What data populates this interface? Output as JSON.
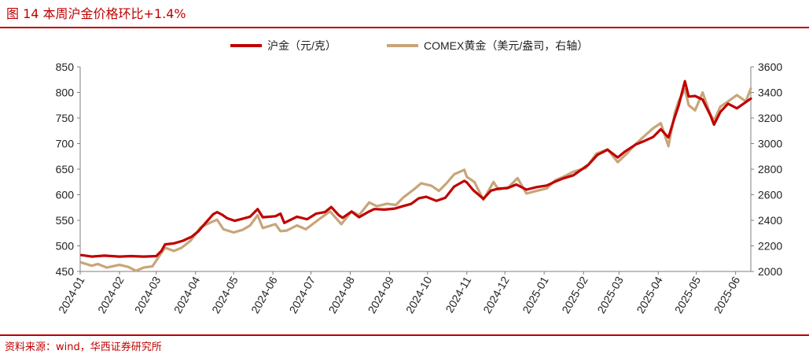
{
  "figure": {
    "title": "图 14   本周沪金价格环比+1.4%",
    "source": "资料来源：wind，华西证券研究所"
  },
  "colors": {
    "shfe": "#c00000",
    "comex": "#c8a57a",
    "accent": "#c00000"
  },
  "chart_data": {
    "type": "line",
    "title": "",
    "xlabel": "",
    "ylabel": "",
    "y_left": {
      "min": 450,
      "max": 850,
      "ticks": [
        "450",
        "500",
        "550",
        "600",
        "650",
        "700",
        "750",
        "800",
        "850"
      ]
    },
    "y_right": {
      "min": 2000,
      "max": 3600,
      "ticks": [
        "2000",
        "2200",
        "2400",
        "2600",
        "2800",
        "3000",
        "3200",
        "3400",
        "3600"
      ]
    },
    "x_range": [
      "2024-01-01",
      "2025-06-13"
    ],
    "x_ticks": [
      "2024-01",
      "2024-02",
      "2024-03",
      "2024-04",
      "2024-05",
      "2024-06",
      "2024-07",
      "2024-08",
      "2024-09",
      "2024-10",
      "2024-11",
      "2024-12",
      "2025-01",
      "2025-02",
      "2025-03",
      "2025-04",
      "2025-05",
      "2025-06"
    ],
    "legend_position": "top-center",
    "grid": false,
    "series": [
      {
        "name": "沪金（元/克）",
        "axis": "left",
        "points": [
          [
            "2024-01-02",
            482
          ],
          [
            "2024-01-10",
            479
          ],
          [
            "2024-01-20",
            481
          ],
          [
            "2024-02-01",
            479
          ],
          [
            "2024-02-10",
            480
          ],
          [
            "2024-02-20",
            479
          ],
          [
            "2024-03-01",
            480
          ],
          [
            "2024-03-05",
            490
          ],
          [
            "2024-03-08",
            503
          ],
          [
            "2024-03-15",
            505
          ],
          [
            "2024-03-22",
            510
          ],
          [
            "2024-03-29",
            518
          ],
          [
            "2024-04-03",
            528
          ],
          [
            "2024-04-10",
            548
          ],
          [
            "2024-04-15",
            562
          ],
          [
            "2024-04-18",
            566
          ],
          [
            "2024-04-22",
            561
          ],
          [
            "2024-04-26",
            554
          ],
          [
            "2024-05-02",
            549
          ],
          [
            "2024-05-08",
            553
          ],
          [
            "2024-05-14",
            557
          ],
          [
            "2024-05-20",
            572
          ],
          [
            "2024-05-24",
            556
          ],
          [
            "2024-06-03",
            558
          ],
          [
            "2024-06-07",
            563
          ],
          [
            "2024-06-10",
            545
          ],
          [
            "2024-06-20",
            557
          ],
          [
            "2024-06-28",
            552
          ],
          [
            "2024-07-05",
            563
          ],
          [
            "2024-07-12",
            566
          ],
          [
            "2024-07-17",
            576
          ],
          [
            "2024-07-23",
            560
          ],
          [
            "2024-07-26",
            555
          ],
          [
            "2024-08-02",
            567
          ],
          [
            "2024-08-08",
            556
          ],
          [
            "2024-08-15",
            566
          ],
          [
            "2024-08-20",
            572
          ],
          [
            "2024-08-28",
            571
          ],
          [
            "2024-09-05",
            573
          ],
          [
            "2024-09-12",
            578
          ],
          [
            "2024-09-18",
            582
          ],
          [
            "2024-09-24",
            593
          ],
          [
            "2024-09-30",
            596
          ],
          [
            "2024-10-08",
            588
          ],
          [
            "2024-10-15",
            594
          ],
          [
            "2024-10-22",
            616
          ],
          [
            "2024-10-30",
            627
          ],
          [
            "2024-11-01",
            624
          ],
          [
            "2024-11-06",
            609
          ],
          [
            "2024-11-14",
            592
          ],
          [
            "2024-11-20",
            608
          ],
          [
            "2024-11-26",
            612
          ],
          [
            "2024-12-03",
            613
          ],
          [
            "2024-12-10",
            620
          ],
          [
            "2024-12-18",
            610
          ],
          [
            "2024-12-26",
            615
          ],
          [
            "2025-01-03",
            618
          ],
          [
            "2025-01-10",
            626
          ],
          [
            "2025-01-16",
            632
          ],
          [
            "2025-01-24",
            638
          ],
          [
            "2025-02-05",
            659
          ],
          [
            "2025-02-12",
            678
          ],
          [
            "2025-02-20",
            688
          ],
          [
            "2025-02-28",
            673
          ],
          [
            "2025-03-06",
            685
          ],
          [
            "2025-03-14",
            698
          ],
          [
            "2025-03-20",
            704
          ],
          [
            "2025-03-28",
            713
          ],
          [
            "2025-04-03",
            728
          ],
          [
            "2025-04-09",
            712
          ],
          [
            "2025-04-14",
            752
          ],
          [
            "2025-04-17",
            774
          ],
          [
            "2025-04-22",
            822
          ],
          [
            "2025-04-25",
            792
          ],
          [
            "2025-04-30",
            793
          ],
          [
            "2025-05-06",
            786
          ],
          [
            "2025-05-12",
            756
          ],
          [
            "2025-05-15",
            737
          ],
          [
            "2025-05-20",
            762
          ],
          [
            "2025-05-26",
            778
          ],
          [
            "2025-06-02",
            769
          ],
          [
            "2025-06-09",
            781
          ],
          [
            "2025-06-13",
            788
          ]
        ]
      },
      {
        "name": "COMEX黄金（美元/盎司，右轴）",
        "axis": "right",
        "points": [
          [
            "2024-01-02",
            2070
          ],
          [
            "2024-01-10",
            2045
          ],
          [
            "2024-01-15",
            2058
          ],
          [
            "2024-01-22",
            2030
          ],
          [
            "2024-02-01",
            2052
          ],
          [
            "2024-02-08",
            2035
          ],
          [
            "2024-02-14",
            2005
          ],
          [
            "2024-02-20",
            2030
          ],
          [
            "2024-02-27",
            2040
          ],
          [
            "2024-03-04",
            2130
          ],
          [
            "2024-03-08",
            2185
          ],
          [
            "2024-03-15",
            2160
          ],
          [
            "2024-03-21",
            2185
          ],
          [
            "2024-03-28",
            2240
          ],
          [
            "2024-04-05",
            2345
          ],
          [
            "2024-04-12",
            2380
          ],
          [
            "2024-04-18",
            2405
          ],
          [
            "2024-04-23",
            2330
          ],
          [
            "2024-05-01",
            2305
          ],
          [
            "2024-05-08",
            2325
          ],
          [
            "2024-05-14",
            2360
          ],
          [
            "2024-05-20",
            2440
          ],
          [
            "2024-05-24",
            2340
          ],
          [
            "2024-06-03",
            2370
          ],
          [
            "2024-06-07",
            2315
          ],
          [
            "2024-06-12",
            2320
          ],
          [
            "2024-06-20",
            2360
          ],
          [
            "2024-06-27",
            2330
          ],
          [
            "2024-07-05",
            2390
          ],
          [
            "2024-07-16",
            2470
          ],
          [
            "2024-07-25",
            2370
          ],
          [
            "2024-08-02",
            2470
          ],
          [
            "2024-08-08",
            2440
          ],
          [
            "2024-08-16",
            2540
          ],
          [
            "2024-08-22",
            2510
          ],
          [
            "2024-08-30",
            2530
          ],
          [
            "2024-09-06",
            2520
          ],
          [
            "2024-09-12",
            2580
          ],
          [
            "2024-09-20",
            2640
          ],
          [
            "2024-09-26",
            2690
          ],
          [
            "2024-10-04",
            2670
          ],
          [
            "2024-10-10",
            2630
          ],
          [
            "2024-10-16",
            2690
          ],
          [
            "2024-10-22",
            2760
          ],
          [
            "2024-10-30",
            2795
          ],
          [
            "2024-11-01",
            2740
          ],
          [
            "2024-11-07",
            2700
          ],
          [
            "2024-11-14",
            2560
          ],
          [
            "2024-11-22",
            2700
          ],
          [
            "2024-11-26",
            2640
          ],
          [
            "2024-12-04",
            2660
          ],
          [
            "2024-12-11",
            2730
          ],
          [
            "2024-12-18",
            2610
          ],
          [
            "2024-12-26",
            2630
          ],
          [
            "2025-01-03",
            2650
          ],
          [
            "2025-01-10",
            2715
          ],
          [
            "2025-01-16",
            2740
          ],
          [
            "2025-01-24",
            2780
          ],
          [
            "2025-02-03",
            2810
          ],
          [
            "2025-02-11",
            2920
          ],
          [
            "2025-02-20",
            2955
          ],
          [
            "2025-02-28",
            2855
          ],
          [
            "2025-03-07",
            2920
          ],
          [
            "2025-03-14",
            2995
          ],
          [
            "2025-03-20",
            3050
          ],
          [
            "2025-03-28",
            3120
          ],
          [
            "2025-04-03",
            3160
          ],
          [
            "2025-04-09",
            2980
          ],
          [
            "2025-04-14",
            3240
          ],
          [
            "2025-04-17",
            3330
          ],
          [
            "2025-04-22",
            3425
          ],
          [
            "2025-04-25",
            3300
          ],
          [
            "2025-04-30",
            3260
          ],
          [
            "2025-05-06",
            3400
          ],
          [
            "2025-05-12",
            3230
          ],
          [
            "2025-05-15",
            3180
          ],
          [
            "2025-05-20",
            3290
          ],
          [
            "2025-05-26",
            3330
          ],
          [
            "2025-06-02",
            3380
          ],
          [
            "2025-06-09",
            3330
          ],
          [
            "2025-06-13",
            3430
          ]
        ]
      }
    ]
  }
}
